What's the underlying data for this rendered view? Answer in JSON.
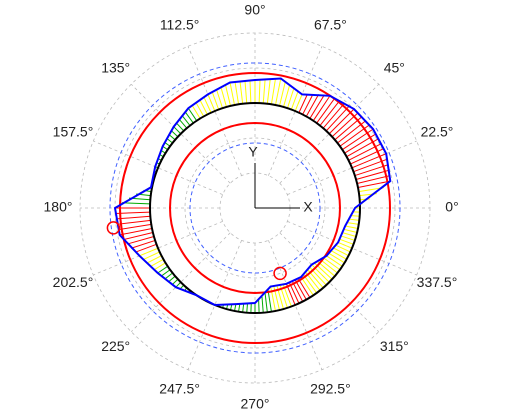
{
  "chart_data": {
    "type": "polar",
    "theta": [
      0,
      11.25,
      22.5,
      33.75,
      45,
      56.25,
      67.5,
      78.75,
      90,
      101.25,
      112.5,
      123.75,
      135,
      146.25,
      157.5,
      168.75,
      180,
      191.25,
      202.5,
      213.75,
      225,
      236.25,
      247.5,
      258.75,
      270,
      281.25,
      292.5,
      303.75,
      315,
      326.25,
      337.5,
      348.75
    ],
    "series": [
      {
        "color": "#0000ff",
        "values": [
          100,
          138,
          142,
          142,
          140,
          135,
          123,
          132,
          128,
          128,
          123,
          120,
          115,
          111,
          108,
          106,
          140,
          138,
          125,
          117,
          112,
          105,
          105,
          98,
          95,
          80,
          82,
          83,
          80,
          86,
          90,
          92
        ],
        "hatch_colors": [
          "#ffff00",
          "#ff0000",
          "#ff0000",
          "#ff0000",
          "#ff0000",
          "#ff0000",
          "#ffff00",
          "#ffff00",
          "#ffff00",
          "#ffff00",
          "#ffff00",
          "#00aa00",
          "#00aa00",
          "#00aa00",
          "#00aa00",
          "#00aa00",
          "#ff0000",
          "#ff0000",
          "#ffff00",
          "#00aa00",
          "#00aa00",
          "#00aa00",
          "#00aa00",
          "#00aa00",
          "#00aa00",
          "#ffff00",
          "#ff0000",
          "#ffff00",
          "#ffff00",
          "#ffff00",
          "#ffff00",
          "#ffff00"
        ]
      }
    ],
    "reference_radius": 105,
    "circles": [
      {
        "r": 105,
        "color": "#000000",
        "dashed": false
      },
      {
        "r": 135,
        "color": "#ff0000",
        "dashed": false
      },
      {
        "r": 85,
        "color": "#ff0000",
        "dashed": false
      },
      {
        "r": 145,
        "color": "#4060ff",
        "dashed": true
      },
      {
        "r": 65,
        "color": "#4060ff",
        "dashed": true
      }
    ],
    "markers": [
      {
        "angle": 188,
        "r": 143
      },
      {
        "angle": 291,
        "r": 70
      }
    ],
    "rlim": [
      0,
      175
    ],
    "rticks": [
      35,
      70,
      105,
      140,
      175
    ],
    "thetaticks": [
      {
        "value": 0,
        "label": "0°"
      },
      {
        "value": 22.5,
        "label": "22.5°"
      },
      {
        "value": 45,
        "label": "45°"
      },
      {
        "value": 67.5,
        "label": "67.5°"
      },
      {
        "value": 90,
        "label": "90°"
      },
      {
        "value": 112.5,
        "label": "112.5°"
      },
      {
        "value": 135,
        "label": "135°"
      },
      {
        "value": 157.5,
        "label": "157.5°"
      },
      {
        "value": 180,
        "label": "180°"
      },
      {
        "value": 202.5,
        "label": "202.5°"
      },
      {
        "value": 225,
        "label": "225°"
      },
      {
        "value": 247.5,
        "label": "247.5°"
      },
      {
        "value": 270,
        "label": "270°"
      },
      {
        "value": 292.5,
        "label": "292.5°"
      },
      {
        "value": 315,
        "label": "315°"
      },
      {
        "value": 337.5,
        "label": "337.5°"
      }
    ],
    "x_label": "X",
    "y_label": "Y",
    "grid": true
  }
}
